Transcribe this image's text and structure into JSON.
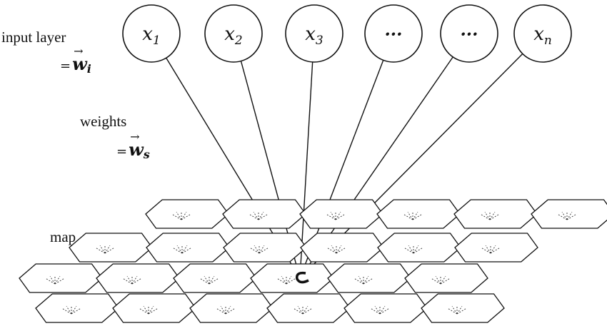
{
  "labels": {
    "input_layer": "input layer",
    "input_eq": "=",
    "input_vec": "w",
    "input_sub": "i",
    "weights": "weights",
    "weights_eq": "=",
    "weights_vec": "w",
    "weights_sub": "s",
    "map": "map"
  },
  "input_nodes": [
    {
      "var": "x",
      "sub": "1"
    },
    {
      "var": "x",
      "sub": "2"
    },
    {
      "var": "x",
      "sub": "3"
    },
    {
      "var": "···",
      "sub": ""
    },
    {
      "var": "···",
      "sub": ""
    },
    {
      "var": "x",
      "sub": "n"
    }
  ],
  "map_grid": {
    "rows": 4,
    "cols": 6
  },
  "colors": {
    "stroke": "#111111",
    "background": "#ffffff"
  }
}
